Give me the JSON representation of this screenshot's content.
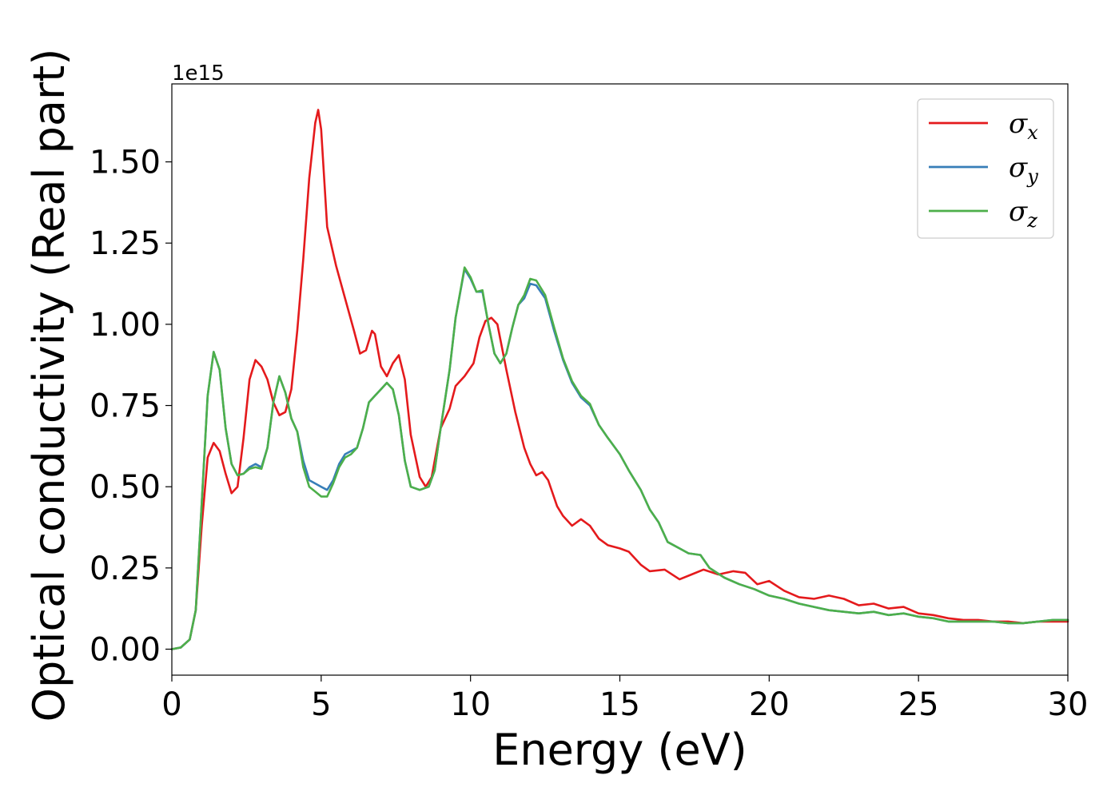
{
  "chart_data": {
    "type": "line",
    "xlabel": "Energy (eV)",
    "ylabel": "Optical conductivity (Real part)",
    "y_offset_label": "1e15",
    "xlim": [
      0,
      30
    ],
    "ylim": [
      -0.08,
      1.74
    ],
    "xticks": [
      0,
      5,
      10,
      15,
      20,
      25,
      30
    ],
    "xtick_labels": [
      "0",
      "5",
      "10",
      "15",
      "20",
      "25",
      "30"
    ],
    "yticks": [
      0.0,
      0.25,
      0.5,
      0.75,
      1.0,
      1.25,
      1.5
    ],
    "ytick_labels": [
      "0.00",
      "0.25",
      "0.50",
      "0.75",
      "1.00",
      "1.25",
      "1.50"
    ],
    "grid": false,
    "legend": "top-right",
    "series": [
      {
        "name": "σ",
        "subscript": "x",
        "color": "#e41a1c",
        "points": [
          [
            0,
            0
          ],
          [
            0.3,
            0.005
          ],
          [
            0.6,
            0.03
          ],
          [
            0.8,
            0.12
          ],
          [
            1.0,
            0.38
          ],
          [
            1.2,
            0.59
          ],
          [
            1.4,
            0.635
          ],
          [
            1.6,
            0.61
          ],
          [
            1.8,
            0.54
          ],
          [
            2.0,
            0.48
          ],
          [
            2.2,
            0.5
          ],
          [
            2.4,
            0.65
          ],
          [
            2.6,
            0.83
          ],
          [
            2.8,
            0.89
          ],
          [
            3.0,
            0.87
          ],
          [
            3.2,
            0.83
          ],
          [
            3.4,
            0.76
          ],
          [
            3.6,
            0.72
          ],
          [
            3.8,
            0.73
          ],
          [
            4.0,
            0.8
          ],
          [
            4.2,
            0.98
          ],
          [
            4.4,
            1.2
          ],
          [
            4.6,
            1.45
          ],
          [
            4.8,
            1.62
          ],
          [
            4.9,
            1.66
          ],
          [
            5.0,
            1.6
          ],
          [
            5.2,
            1.3
          ],
          [
            5.5,
            1.18
          ],
          [
            5.8,
            1.08
          ],
          [
            6.1,
            0.98
          ],
          [
            6.3,
            0.91
          ],
          [
            6.5,
            0.92
          ],
          [
            6.7,
            0.98
          ],
          [
            6.8,
            0.97
          ],
          [
            7.0,
            0.87
          ],
          [
            7.2,
            0.84
          ],
          [
            7.4,
            0.88
          ],
          [
            7.6,
            0.905
          ],
          [
            7.8,
            0.83
          ],
          [
            8.0,
            0.66
          ],
          [
            8.3,
            0.53
          ],
          [
            8.5,
            0.5
          ],
          [
            8.7,
            0.53
          ],
          [
            9.0,
            0.68
          ],
          [
            9.3,
            0.74
          ],
          [
            9.5,
            0.81
          ],
          [
            9.8,
            0.84
          ],
          [
            10.1,
            0.88
          ],
          [
            10.3,
            0.96
          ],
          [
            10.5,
            1.01
          ],
          [
            10.7,
            1.02
          ],
          [
            10.9,
            1.0
          ],
          [
            11.2,
            0.86
          ],
          [
            11.5,
            0.73
          ],
          [
            11.8,
            0.62
          ],
          [
            12.0,
            0.57
          ],
          [
            12.2,
            0.535
          ],
          [
            12.4,
            0.545
          ],
          [
            12.6,
            0.52
          ],
          [
            12.9,
            0.44
          ],
          [
            13.1,
            0.41
          ],
          [
            13.4,
            0.38
          ],
          [
            13.7,
            0.4
          ],
          [
            14.0,
            0.38
          ],
          [
            14.3,
            0.34
          ],
          [
            14.6,
            0.32
          ],
          [
            15.0,
            0.31
          ],
          [
            15.3,
            0.3
          ],
          [
            15.7,
            0.26
          ],
          [
            16.0,
            0.24
          ],
          [
            16.5,
            0.245
          ],
          [
            17.0,
            0.215
          ],
          [
            17.4,
            0.23
          ],
          [
            17.8,
            0.245
          ],
          [
            18.3,
            0.23
          ],
          [
            18.8,
            0.24
          ],
          [
            19.2,
            0.235
          ],
          [
            19.6,
            0.2
          ],
          [
            20.0,
            0.21
          ],
          [
            20.5,
            0.18
          ],
          [
            21.0,
            0.16
          ],
          [
            21.5,
            0.155
          ],
          [
            22.0,
            0.165
          ],
          [
            22.5,
            0.155
          ],
          [
            23.0,
            0.135
          ],
          [
            23.5,
            0.14
          ],
          [
            24.0,
            0.125
          ],
          [
            24.5,
            0.13
          ],
          [
            25.0,
            0.11
          ],
          [
            25.5,
            0.105
          ],
          [
            26.0,
            0.095
          ],
          [
            26.5,
            0.09
          ],
          [
            27.0,
            0.09
          ],
          [
            27.5,
            0.085
          ],
          [
            28.0,
            0.085
          ],
          [
            28.5,
            0.08
          ],
          [
            29.0,
            0.085
          ],
          [
            29.5,
            0.085
          ],
          [
            30.0,
            0.085
          ]
        ]
      },
      {
        "name": "σ",
        "subscript": "y",
        "color": "#377eb8",
        "points": [
          [
            0,
            0
          ],
          [
            0.3,
            0.005
          ],
          [
            0.6,
            0.03
          ],
          [
            0.8,
            0.12
          ],
          [
            1.0,
            0.45
          ],
          [
            1.2,
            0.78
          ],
          [
            1.4,
            0.915
          ],
          [
            1.6,
            0.86
          ],
          [
            1.8,
            0.68
          ],
          [
            2.0,
            0.57
          ],
          [
            2.2,
            0.535
          ],
          [
            2.4,
            0.54
          ],
          [
            2.6,
            0.56
          ],
          [
            2.8,
            0.57
          ],
          [
            3.0,
            0.56
          ],
          [
            3.2,
            0.62
          ],
          [
            3.4,
            0.76
          ],
          [
            3.6,
            0.84
          ],
          [
            3.8,
            0.79
          ],
          [
            4.0,
            0.71
          ],
          [
            4.2,
            0.67
          ],
          [
            4.4,
            0.58
          ],
          [
            4.6,
            0.52
          ],
          [
            4.8,
            0.51
          ],
          [
            5.0,
            0.5
          ],
          [
            5.2,
            0.49
          ],
          [
            5.4,
            0.52
          ],
          [
            5.6,
            0.57
          ],
          [
            5.8,
            0.6
          ],
          [
            6.0,
            0.61
          ],
          [
            6.2,
            0.62
          ],
          [
            6.4,
            0.68
          ],
          [
            6.6,
            0.76
          ],
          [
            6.8,
            0.78
          ],
          [
            7.0,
            0.8
          ],
          [
            7.2,
            0.82
          ],
          [
            7.4,
            0.8
          ],
          [
            7.6,
            0.72
          ],
          [
            7.8,
            0.58
          ],
          [
            8.0,
            0.5
          ],
          [
            8.3,
            0.49
          ],
          [
            8.6,
            0.5
          ],
          [
            8.8,
            0.55
          ],
          [
            9.0,
            0.68
          ],
          [
            9.3,
            0.86
          ],
          [
            9.5,
            1.02
          ],
          [
            9.8,
            1.17
          ],
          [
            10.0,
            1.14
          ],
          [
            10.2,
            1.1
          ],
          [
            10.4,
            1.1
          ],
          [
            10.6,
            1.0
          ],
          [
            10.8,
            0.91
          ],
          [
            11.0,
            0.88
          ],
          [
            11.2,
            0.91
          ],
          [
            11.4,
            0.99
          ],
          [
            11.6,
            1.06
          ],
          [
            11.8,
            1.08
          ],
          [
            12.0,
            1.125
          ],
          [
            12.2,
            1.12
          ],
          [
            12.5,
            1.08
          ],
          [
            12.8,
            0.98
          ],
          [
            13.1,
            0.89
          ],
          [
            13.4,
            0.82
          ],
          [
            13.7,
            0.775
          ],
          [
            14.0,
            0.75
          ],
          [
            14.3,
            0.69
          ],
          [
            14.6,
            0.65
          ],
          [
            15.0,
            0.6
          ],
          [
            15.3,
            0.55
          ],
          [
            15.7,
            0.49
          ],
          [
            16.0,
            0.43
          ],
          [
            16.3,
            0.39
          ],
          [
            16.6,
            0.33
          ],
          [
            17.0,
            0.31
          ],
          [
            17.3,
            0.295
          ],
          [
            17.7,
            0.29
          ],
          [
            18.0,
            0.25
          ],
          [
            18.5,
            0.22
          ],
          [
            19.0,
            0.2
          ],
          [
            19.5,
            0.185
          ],
          [
            20.0,
            0.165
          ],
          [
            20.5,
            0.155
          ],
          [
            21.0,
            0.14
          ],
          [
            21.5,
            0.13
          ],
          [
            22.0,
            0.12
          ],
          [
            22.5,
            0.115
          ],
          [
            23.0,
            0.11
          ],
          [
            23.5,
            0.115
          ],
          [
            24.0,
            0.105
          ],
          [
            24.5,
            0.11
          ],
          [
            25.0,
            0.1
          ],
          [
            25.5,
            0.095
          ],
          [
            26.0,
            0.085
          ],
          [
            26.5,
            0.085
          ],
          [
            27.0,
            0.085
          ],
          [
            27.5,
            0.085
          ],
          [
            28.0,
            0.08
          ],
          [
            28.5,
            0.08
          ],
          [
            29.0,
            0.085
          ],
          [
            29.5,
            0.09
          ],
          [
            30.0,
            0.09
          ]
        ]
      },
      {
        "name": "σ",
        "subscript": "z",
        "color": "#4daf4a",
        "points": [
          [
            0,
            0
          ],
          [
            0.3,
            0.005
          ],
          [
            0.6,
            0.03
          ],
          [
            0.8,
            0.12
          ],
          [
            1.0,
            0.45
          ],
          [
            1.2,
            0.78
          ],
          [
            1.4,
            0.915
          ],
          [
            1.6,
            0.86
          ],
          [
            1.8,
            0.68
          ],
          [
            2.0,
            0.57
          ],
          [
            2.2,
            0.535
          ],
          [
            2.4,
            0.54
          ],
          [
            2.6,
            0.555
          ],
          [
            2.8,
            0.56
          ],
          [
            3.0,
            0.555
          ],
          [
            3.2,
            0.62
          ],
          [
            3.4,
            0.76
          ],
          [
            3.6,
            0.84
          ],
          [
            3.8,
            0.79
          ],
          [
            4.0,
            0.71
          ],
          [
            4.2,
            0.67
          ],
          [
            4.4,
            0.56
          ],
          [
            4.6,
            0.5
          ],
          [
            4.8,
            0.485
          ],
          [
            5.0,
            0.47
          ],
          [
            5.2,
            0.47
          ],
          [
            5.4,
            0.51
          ],
          [
            5.6,
            0.56
          ],
          [
            5.8,
            0.59
          ],
          [
            6.0,
            0.6
          ],
          [
            6.2,
            0.62
          ],
          [
            6.4,
            0.68
          ],
          [
            6.6,
            0.76
          ],
          [
            6.8,
            0.78
          ],
          [
            7.0,
            0.8
          ],
          [
            7.2,
            0.82
          ],
          [
            7.4,
            0.8
          ],
          [
            7.6,
            0.72
          ],
          [
            7.8,
            0.58
          ],
          [
            8.0,
            0.5
          ],
          [
            8.3,
            0.49
          ],
          [
            8.6,
            0.5
          ],
          [
            8.8,
            0.55
          ],
          [
            9.0,
            0.68
          ],
          [
            9.3,
            0.86
          ],
          [
            9.5,
            1.02
          ],
          [
            9.8,
            1.175
          ],
          [
            10.0,
            1.145
          ],
          [
            10.2,
            1.1
          ],
          [
            10.4,
            1.105
          ],
          [
            10.6,
            1.0
          ],
          [
            10.8,
            0.91
          ],
          [
            11.0,
            0.88
          ],
          [
            11.2,
            0.91
          ],
          [
            11.4,
            0.99
          ],
          [
            11.6,
            1.06
          ],
          [
            11.8,
            1.09
          ],
          [
            12.0,
            1.14
          ],
          [
            12.2,
            1.135
          ],
          [
            12.5,
            1.09
          ],
          [
            12.8,
            0.99
          ],
          [
            13.1,
            0.895
          ],
          [
            13.4,
            0.825
          ],
          [
            13.7,
            0.78
          ],
          [
            14.0,
            0.755
          ],
          [
            14.3,
            0.69
          ],
          [
            14.6,
            0.65
          ],
          [
            15.0,
            0.6
          ],
          [
            15.3,
            0.55
          ],
          [
            15.7,
            0.49
          ],
          [
            16.0,
            0.43
          ],
          [
            16.3,
            0.39
          ],
          [
            16.6,
            0.33
          ],
          [
            17.0,
            0.31
          ],
          [
            17.3,
            0.295
          ],
          [
            17.7,
            0.29
          ],
          [
            18.0,
            0.25
          ],
          [
            18.5,
            0.22
          ],
          [
            19.0,
            0.2
          ],
          [
            19.5,
            0.185
          ],
          [
            20.0,
            0.165
          ],
          [
            20.5,
            0.155
          ],
          [
            21.0,
            0.14
          ],
          [
            21.5,
            0.13
          ],
          [
            22.0,
            0.12
          ],
          [
            22.5,
            0.115
          ],
          [
            23.0,
            0.11
          ],
          [
            23.5,
            0.115
          ],
          [
            24.0,
            0.105
          ],
          [
            24.5,
            0.11
          ],
          [
            25.0,
            0.1
          ],
          [
            25.5,
            0.095
          ],
          [
            26.0,
            0.085
          ],
          [
            26.5,
            0.085
          ],
          [
            27.0,
            0.085
          ],
          [
            27.5,
            0.085
          ],
          [
            28.0,
            0.08
          ],
          [
            28.5,
            0.08
          ],
          [
            29.0,
            0.085
          ],
          [
            29.5,
            0.09
          ],
          [
            30.0,
            0.09
          ]
        ]
      }
    ]
  }
}
